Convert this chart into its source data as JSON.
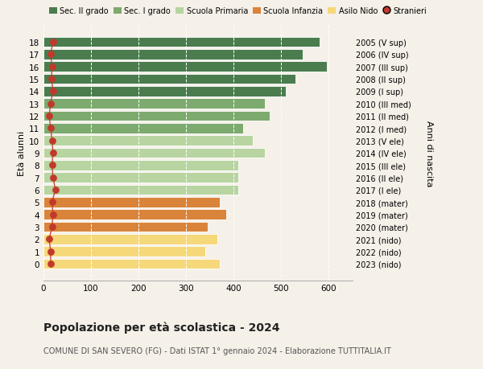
{
  "ages": [
    18,
    17,
    16,
    15,
    14,
    13,
    12,
    11,
    10,
    9,
    8,
    7,
    6,
    5,
    4,
    3,
    2,
    1,
    0
  ],
  "right_labels": [
    "2005 (V sup)",
    "2006 (IV sup)",
    "2007 (III sup)",
    "2008 (II sup)",
    "2009 (I sup)",
    "2010 (III med)",
    "2011 (II med)",
    "2012 (I med)",
    "2013 (V ele)",
    "2014 (IV ele)",
    "2015 (III ele)",
    "2016 (II ele)",
    "2017 (I ele)",
    "2018 (mater)",
    "2019 (mater)",
    "2020 (mater)",
    "2021 (nido)",
    "2022 (nido)",
    "2023 (nido)"
  ],
  "bar_values": [
    580,
    545,
    595,
    530,
    510,
    465,
    475,
    420,
    440,
    465,
    410,
    410,
    410,
    370,
    385,
    345,
    365,
    340,
    370
  ],
  "dot_values": [
    20,
    15,
    18,
    17,
    20,
    15,
    12,
    15,
    18,
    20,
    18,
    20,
    25,
    18,
    20,
    18,
    12,
    15,
    15
  ],
  "bar_colors": [
    "#4a7c4e",
    "#4a7c4e",
    "#4a7c4e",
    "#4a7c4e",
    "#4a7c4e",
    "#7daa6e",
    "#7daa6e",
    "#7daa6e",
    "#b8d4a0",
    "#b8d4a0",
    "#b8d4a0",
    "#b8d4a0",
    "#b8d4a0",
    "#d9843a",
    "#d9843a",
    "#d9843a",
    "#f5d87a",
    "#f5d87a",
    "#f5d87a"
  ],
  "colors": {
    "sec2": "#4a7c4e",
    "sec1": "#7daa6e",
    "primaria": "#b8d4a0",
    "infanzia": "#d9843a",
    "nido": "#f5d87a",
    "stranieri": "#c0392b",
    "dot_line": "#c0392b",
    "background": "#f5f0e8",
    "grid_color": "#dddddd"
  },
  "legend_labels": [
    "Sec. II grado",
    "Sec. I grado",
    "Scuola Primaria",
    "Scuola Infanzia",
    "Asilo Nido",
    "Stranieri"
  ],
  "title_bold": "Popolazione per età scolastica - 2024",
  "subtitle": "COMUNE DI SAN SEVERO (FG) - Dati ISTAT 1° gennaio 2024 - Elaborazione TUTTITALIA.IT",
  "ylabel_left": "Età alunni",
  "ylabel_right": "Anni di nascita",
  "xlim": [
    0,
    650
  ],
  "xticks": [
    0,
    100,
    200,
    300,
    400,
    500,
    600
  ]
}
